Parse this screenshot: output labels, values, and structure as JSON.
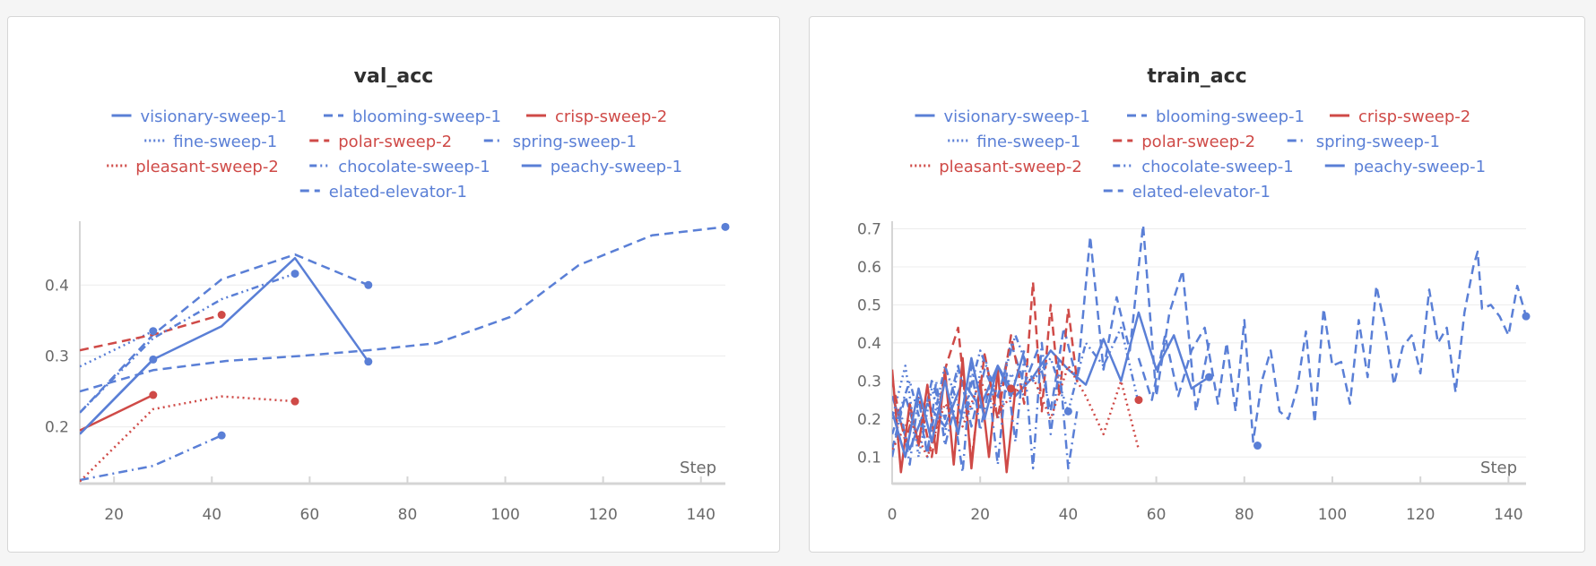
{
  "colors": {
    "blue": "#5a7fd6",
    "red": "#cf4a47",
    "grid": "#ececec",
    "axis": "#d5d5d5",
    "tick_text": "#6a6a6a"
  },
  "chart_data": [
    {
      "type": "line",
      "title": "val_acc",
      "xlabel": "Step",
      "ylabel": "",
      "xlim": [
        13,
        145
      ],
      "ylim": [
        0.12,
        0.49
      ],
      "xticks": [
        20,
        40,
        60,
        80,
        100,
        120,
        140
      ],
      "yticks": [
        0.2,
        0.3,
        0.4
      ],
      "grid": true,
      "legend_position": "top-center",
      "legend": [
        [
          "visionary-sweep-1",
          "blooming-sweep-1",
          "crisp-sweep-2"
        ],
        [
          "fine-sweep-1",
          "polar-sweep-2",
          "spring-sweep-1"
        ],
        [
          "pleasant-sweep-2",
          "chocolate-sweep-1",
          "peachy-sweep-1"
        ],
        [
          "elated-elevator-1"
        ]
      ],
      "series": [
        {
          "name": "visionary-sweep-1",
          "color": "blue",
          "dash": "solid",
          "x": [
            13,
            28,
            42,
            57,
            72
          ],
          "y": [
            0.19,
            0.295,
            0.342,
            0.438,
            0.292
          ]
        },
        {
          "name": "blooming-sweep-1",
          "color": "blue",
          "dash": "dashed",
          "x": [
            13,
            28,
            42,
            57,
            72
          ],
          "y": [
            0.22,
            0.33,
            0.408,
            0.443,
            0.4
          ]
        },
        {
          "name": "crisp-sweep-2",
          "color": "red",
          "dash": "solid",
          "x": [
            13,
            28
          ],
          "y": [
            0.195,
            0.245
          ]
        },
        {
          "name": "fine-sweep-1",
          "color": "blue",
          "dash": "dotted",
          "x": [
            13,
            28
          ],
          "y": [
            0.285,
            0.335
          ]
        },
        {
          "name": "polar-sweep-2",
          "color": "red",
          "dash": "dashed",
          "x": [
            13,
            28,
            42
          ],
          "y": [
            0.308,
            0.33,
            0.358
          ]
        },
        {
          "name": "spring-sweep-1",
          "color": "blue",
          "dash": "dashdot",
          "x": [
            13,
            28,
            42
          ],
          "y": [
            0.125,
            0.145,
            0.188
          ]
        },
        {
          "name": "pleasant-sweep-2",
          "color": "red",
          "dash": "dotted",
          "x": [
            13,
            28,
            42,
            57
          ],
          "y": [
            0.123,
            0.225,
            0.243,
            0.236
          ]
        },
        {
          "name": "chocolate-sweep-1",
          "color": "blue",
          "dash": "dashdotdot",
          "x": [
            13,
            28,
            42,
            57
          ],
          "y": [
            0.22,
            0.325,
            0.38,
            0.416
          ]
        },
        {
          "name": "peachy-sweep-1",
          "color": "blue",
          "dash": "solid",
          "x": [
            13,
            28
          ],
          "y": [
            0.19,
            0.295
          ]
        },
        {
          "name": "elated-elevator-1",
          "color": "blue",
          "dash": "dashed",
          "x": [
            13,
            28,
            43,
            58,
            72,
            86,
            101,
            115,
            130,
            145
          ],
          "y": [
            0.25,
            0.28,
            0.293,
            0.3,
            0.308,
            0.318,
            0.355,
            0.428,
            0.47,
            0.482
          ]
        }
      ]
    },
    {
      "type": "line",
      "title": "train_acc",
      "xlabel": "Step",
      "ylabel": "",
      "xlim": [
        0,
        144
      ],
      "ylim": [
        0.03,
        0.72
      ],
      "xticks": [
        0,
        20,
        40,
        60,
        80,
        100,
        120,
        140
      ],
      "yticks": [
        0.1,
        0.2,
        0.3,
        0.4,
        0.5,
        0.6,
        0.7
      ],
      "grid": true,
      "legend_position": "top-center",
      "legend": [
        [
          "visionary-sweep-1",
          "blooming-sweep-1",
          "crisp-sweep-2"
        ],
        [
          "fine-sweep-1",
          "polar-sweep-2",
          "spring-sweep-1"
        ],
        [
          "pleasant-sweep-2",
          "chocolate-sweep-1",
          "peachy-sweep-1"
        ],
        [
          "elated-elevator-1"
        ]
      ],
      "series": [
        {
          "name": "visionary-sweep-1",
          "color": "blue",
          "dash": "solid",
          "x": [
            0,
            4,
            8,
            12,
            16,
            20,
            24,
            28,
            32,
            36,
            40,
            44,
            48,
            52,
            56,
            60,
            64,
            68,
            72
          ],
          "y": [
            0.26,
            0.12,
            0.24,
            0.18,
            0.3,
            0.23,
            0.34,
            0.26,
            0.31,
            0.38,
            0.33,
            0.29,
            0.41,
            0.3,
            0.48,
            0.33,
            0.42,
            0.28,
            0.31
          ]
        },
        {
          "name": "blooming-sweep-1",
          "color": "blue",
          "dash": "dashed",
          "x": [
            0,
            3,
            6,
            9,
            12,
            15,
            18,
            21,
            24,
            27,
            30,
            33,
            36,
            39,
            42,
            45,
            48,
            51,
            54,
            57,
            60,
            63,
            66,
            69,
            72
          ],
          "y": [
            0.12,
            0.26,
            0.14,
            0.3,
            0.2,
            0.34,
            0.18,
            0.33,
            0.25,
            0.4,
            0.29,
            0.38,
            0.22,
            0.44,
            0.3,
            0.68,
            0.33,
            0.52,
            0.38,
            0.71,
            0.26,
            0.48,
            0.59,
            0.22,
            0.4
          ]
        },
        {
          "name": "crisp-sweep-2",
          "color": "red",
          "dash": "solid",
          "x": [
            0,
            2,
            4,
            6,
            8,
            10,
            12,
            14,
            16,
            18,
            20,
            22,
            24,
            26,
            28
          ],
          "y": [
            0.33,
            0.06,
            0.24,
            0.13,
            0.29,
            0.11,
            0.33,
            0.08,
            0.36,
            0.07,
            0.3,
            0.1,
            0.33,
            0.06,
            0.28
          ]
        },
        {
          "name": "fine-sweep-1",
          "color": "blue",
          "dash": "dotted",
          "x": [
            0,
            3,
            6,
            9,
            12,
            15,
            18,
            21,
            24,
            27,
            30
          ],
          "y": [
            0.2,
            0.34,
            0.1,
            0.28,
            0.16,
            0.33,
            0.22,
            0.37,
            0.2,
            0.32,
            0.26
          ]
        },
        {
          "name": "polar-sweep-2",
          "color": "red",
          "dash": "dashed",
          "x": [
            0,
            3,
            6,
            9,
            12,
            15,
            18,
            21,
            24,
            27,
            30,
            32,
            34,
            36,
            38,
            40,
            42
          ],
          "y": [
            0.3,
            0.14,
            0.26,
            0.1,
            0.33,
            0.44,
            0.09,
            0.37,
            0.2,
            0.42,
            0.24,
            0.56,
            0.22,
            0.5,
            0.26,
            0.49,
            0.3
          ]
        },
        {
          "name": "spring-sweep-1",
          "color": "blue",
          "dash": "dashdot",
          "x": [
            0,
            2,
            4,
            6,
            8,
            10,
            12,
            14,
            16,
            18,
            20,
            22,
            24,
            26,
            28,
            30,
            32,
            34,
            36,
            38,
            40,
            42
          ],
          "y": [
            0.1,
            0.22,
            0.08,
            0.26,
            0.1,
            0.3,
            0.13,
            0.22,
            0.06,
            0.34,
            0.17,
            0.28,
            0.08,
            0.32,
            0.14,
            0.36,
            0.07,
            0.4,
            0.16,
            0.34,
            0.07,
            0.22
          ]
        },
        {
          "name": "pleasant-sweep-2",
          "color": "red",
          "dash": "dotted",
          "x": [
            0,
            4,
            8,
            12,
            16,
            20,
            24,
            28,
            32,
            36,
            40,
            44,
            48,
            52,
            56
          ],
          "y": [
            0.12,
            0.2,
            0.1,
            0.24,
            0.18,
            0.3,
            0.22,
            0.27,
            0.31,
            0.2,
            0.34,
            0.26,
            0.16,
            0.3,
            0.12
          ]
        },
        {
          "name": "chocolate-sweep-1",
          "color": "blue",
          "dash": "dashdotdot",
          "x": [
            0,
            4,
            8,
            12,
            16,
            20,
            24,
            28,
            32,
            36,
            40,
            44,
            48,
            52,
            56
          ],
          "y": [
            0.16,
            0.3,
            0.12,
            0.34,
            0.2,
            0.38,
            0.26,
            0.42,
            0.3,
            0.36,
            0.22,
            0.4,
            0.34,
            0.44,
            0.24
          ]
        },
        {
          "name": "peachy-sweep-1",
          "color": "blue",
          "dash": "solid",
          "x": [
            0,
            3,
            6,
            9,
            12,
            15,
            18,
            21,
            24,
            27,
            30
          ],
          "y": [
            0.22,
            0.1,
            0.28,
            0.14,
            0.3,
            0.16,
            0.36,
            0.2,
            0.34,
            0.26,
            0.38
          ]
        },
        {
          "name": "elated-elevator-1",
          "color": "blue",
          "dash": "dashed",
          "x": [
            56,
            59,
            62,
            65,
            68,
            71,
            74,
            76,
            78,
            80,
            82,
            84,
            86,
            88,
            90,
            92,
            94,
            96,
            98,
            100,
            102,
            104,
            106,
            108,
            110,
            112,
            114,
            116,
            118,
            120,
            122,
            124,
            126,
            128,
            130,
            132,
            133,
            134,
            136,
            138,
            140,
            142,
            144
          ],
          "y": [
            0.36,
            0.25,
            0.42,
            0.26,
            0.38,
            0.44,
            0.24,
            0.4,
            0.22,
            0.46,
            0.14,
            0.3,
            0.38,
            0.22,
            0.2,
            0.28,
            0.43,
            0.19,
            0.49,
            0.34,
            0.35,
            0.24,
            0.46,
            0.31,
            0.55,
            0.44,
            0.29,
            0.39,
            0.42,
            0.32,
            0.54,
            0.4,
            0.44,
            0.27,
            0.48,
            0.6,
            0.64,
            0.49,
            0.5,
            0.47,
            0.42,
            0.55,
            0.47
          ]
        }
      ],
      "endpoints": [
        {
          "x": 27,
          "y": 0.28,
          "color": "red"
        },
        {
          "x": 40,
          "y": 0.22,
          "color": "blue"
        },
        {
          "x": 56,
          "y": 0.25,
          "color": "red"
        },
        {
          "x": 72,
          "y": 0.31,
          "color": "blue"
        },
        {
          "x": 83,
          "y": 0.13,
          "color": "blue"
        },
        {
          "x": 144,
          "y": 0.47,
          "color": "blue"
        }
      ]
    }
  ]
}
